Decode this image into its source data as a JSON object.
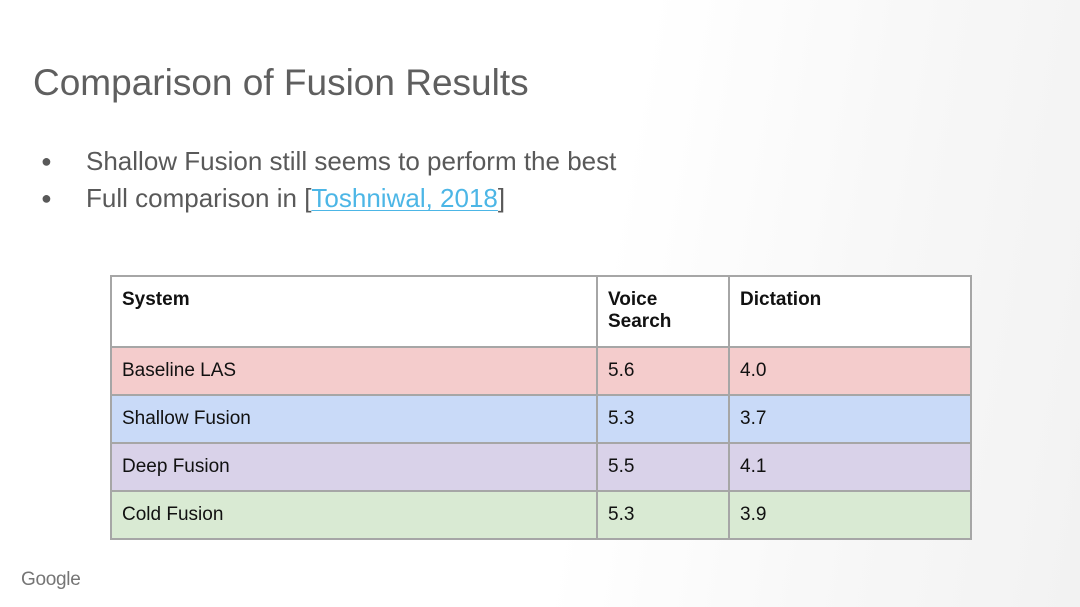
{
  "slide": {
    "title": "Comparison of Fusion Results",
    "bullets": [
      {
        "text": "Shallow Fusion still seems to perform the best"
      },
      {
        "prefix": "Full comparison in [",
        "link_text": "Toshniwal, 2018",
        "suffix": "]"
      }
    ]
  },
  "table": {
    "headers": [
      "System",
      "Voice Search",
      "Dictation"
    ],
    "rows": [
      {
        "system": "Baseline LAS",
        "voice_search": "5.6",
        "dictation": "4.0",
        "color": "#f4cccc"
      },
      {
        "system": "Shallow Fusion",
        "voice_search": "5.3",
        "dictation": "3.7",
        "color": "#c9daf8"
      },
      {
        "system": "Deep Fusion",
        "voice_search": "5.5",
        "dictation": "4.1",
        "color": "#d9d2e9"
      },
      {
        "system": "Cold Fusion",
        "voice_search": "5.3",
        "dictation": "3.9",
        "color": "#d9ead3"
      }
    ]
  },
  "footer": {
    "logo": "Google"
  },
  "colors": {
    "link": "#4cb6e6",
    "title": "#5f5f5f",
    "border": "#a6a6a6"
  }
}
